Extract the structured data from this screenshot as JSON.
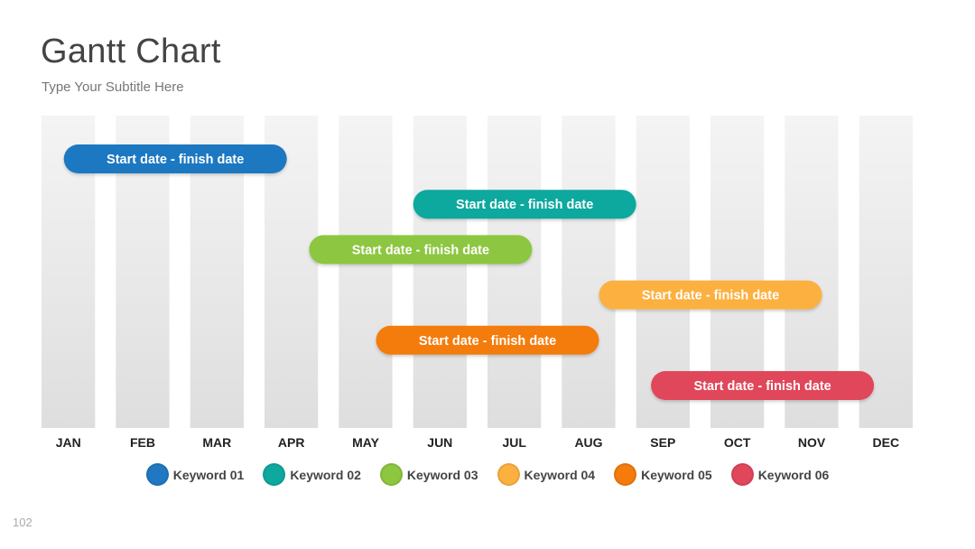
{
  "slide": {
    "title": "Gantt Chart",
    "subtitle": "Type Your Subtitle Here",
    "page_number": "102"
  },
  "colors": {
    "keyword_01": "#1f78c1",
    "keyword_02": "#0fa89e",
    "keyword_03": "#8dc63f",
    "keyword_04": "#fbb040",
    "keyword_05": "#f47b0c",
    "keyword_06": "#e0475a"
  },
  "chart_data": {
    "type": "gantt",
    "categories": [
      "JAN",
      "FEB",
      "MAR",
      "APR",
      "MAY",
      "JUN",
      "JUL",
      "AUG",
      "SEP",
      "OCT",
      "NOV",
      "DEC"
    ],
    "tasks": [
      {
        "label": "Start date - finish date",
        "start": 0.3,
        "end": 3.3,
        "color": "#1f78c1"
      },
      {
        "label": "Start date - finish date",
        "start": 5.0,
        "end": 8.0,
        "color": "#0fa89e"
      },
      {
        "label": "Start date - finish date",
        "start": 3.6,
        "end": 6.6,
        "color": "#8dc63f"
      },
      {
        "label": "Start date - finish date",
        "start": 7.5,
        "end": 10.5,
        "color": "#fbb040"
      },
      {
        "label": "Start date - finish date",
        "start": 4.5,
        "end": 7.5,
        "color": "#f47b0c"
      },
      {
        "label": "Start date - finish date",
        "start": 8.2,
        "end": 11.2,
        "color": "#e0475a"
      }
    ],
    "legend": [
      {
        "name": "Keyword 01",
        "color": "#1f78c1"
      },
      {
        "name": "Keyword 02",
        "color": "#0fa89e"
      },
      {
        "name": "Keyword 03",
        "color": "#8dc63f"
      },
      {
        "name": "Keyword 04",
        "color": "#fbb040"
      },
      {
        "name": "Keyword 05",
        "color": "#f47b0c"
      },
      {
        "name": "Keyword 06",
        "color": "#e0475a"
      }
    ],
    "legend_position": "bottom"
  }
}
